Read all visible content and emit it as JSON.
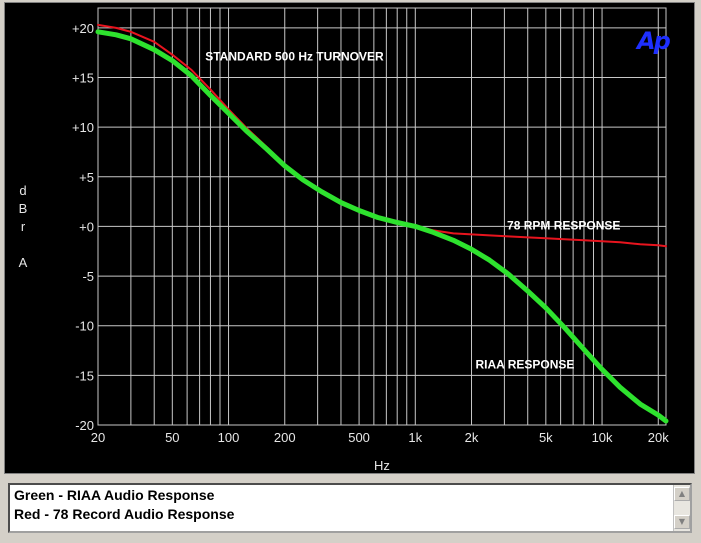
{
  "logo": "Ap",
  "chart_data": {
    "type": "line",
    "x_scale": "log",
    "xlim": [
      20,
      22000
    ],
    "ylim": [
      -20,
      22
    ],
    "grid": true,
    "xlabel": "Hz",
    "ylabel": [
      "d",
      "B",
      "r",
      "",
      "A"
    ],
    "y_ticks": [
      {
        "v": 20,
        "label": "+20"
      },
      {
        "v": 15,
        "label": "+15"
      },
      {
        "v": 10,
        "label": "+10"
      },
      {
        "v": 5,
        "label": "+5"
      },
      {
        "v": 0,
        "label": "+0"
      },
      {
        "v": -5,
        "label": "-5"
      },
      {
        "v": -10,
        "label": "-10"
      },
      {
        "v": -15,
        "label": "-15"
      },
      {
        "v": -20,
        "label": "-20"
      }
    ],
    "x_ticks": [
      {
        "v": 20,
        "label": "20"
      },
      {
        "v": 50,
        "label": "50"
      },
      {
        "v": 100,
        "label": "100"
      },
      {
        "v": 200,
        "label": "200"
      },
      {
        "v": 500,
        "label": "500"
      },
      {
        "v": 1000,
        "label": "1k"
      },
      {
        "v": 2000,
        "label": "2k"
      },
      {
        "v": 5000,
        "label": "5k"
      },
      {
        "v": 10000,
        "label": "10k"
      },
      {
        "v": 20000,
        "label": "20k"
      }
    ],
    "annotations": [
      {
        "text": "STANDARD 500 Hz TURNOVER",
        "x": 75,
        "y": 17.2
      },
      {
        "text": "78 RPM RESPONSE",
        "x": 3100,
        "y": 0.2
      },
      {
        "text": "RIAA RESPONSE",
        "x": 2100,
        "y": -13.8
      }
    ],
    "series": [
      {
        "color": "#e8141e",
        "x": [
          20,
          25,
          30,
          40,
          50,
          63,
          80,
          100,
          125,
          160,
          200,
          250,
          315,
          400,
          500,
          630,
          800,
          1000,
          1250,
          1600,
          2000,
          2500,
          3150,
          4000,
          5000,
          6300,
          8000,
          10000,
          12500,
          16000,
          20000,
          22000
        ],
        "values": [
          20.3,
          20.0,
          19.6,
          18.6,
          17.3,
          15.8,
          13.8,
          11.8,
          9.9,
          8.0,
          6.2,
          4.7,
          3.5,
          2.4,
          1.6,
          0.9,
          0.4,
          0.0,
          -0.4,
          -0.7,
          -0.8,
          -0.9,
          -1.0,
          -1.1,
          -1.2,
          -1.3,
          -1.4,
          -1.5,
          -1.6,
          -1.8,
          -1.9,
          -2.0
        ]
      },
      {
        "color": "#2ee22e",
        "x": [
          20,
          25,
          30,
          40,
          50,
          63,
          80,
          100,
          125,
          160,
          200,
          250,
          315,
          400,
          500,
          630,
          800,
          1000,
          1250,
          1600,
          2000,
          2500,
          3150,
          4000,
          5000,
          6300,
          8000,
          10000,
          12500,
          16000,
          20000,
          22000
        ],
        "values": [
          19.6,
          19.3,
          18.9,
          17.8,
          16.7,
          15.2,
          13.2,
          11.4,
          9.6,
          7.8,
          6.1,
          4.7,
          3.5,
          2.4,
          1.6,
          0.9,
          0.4,
          0.0,
          -0.6,
          -1.4,
          -2.3,
          -3.4,
          -4.8,
          -6.5,
          -8.2,
          -10.2,
          -12.4,
          -14.4,
          -16.2,
          -17.9,
          -19.0,
          -19.6
        ]
      }
    ]
  },
  "legend": {
    "lines": [
      "Green - RIAA Audio Response",
      "Red - 78 Record Audio Response"
    ]
  },
  "scrollbar": {
    "up": "▲",
    "down": "▼"
  }
}
